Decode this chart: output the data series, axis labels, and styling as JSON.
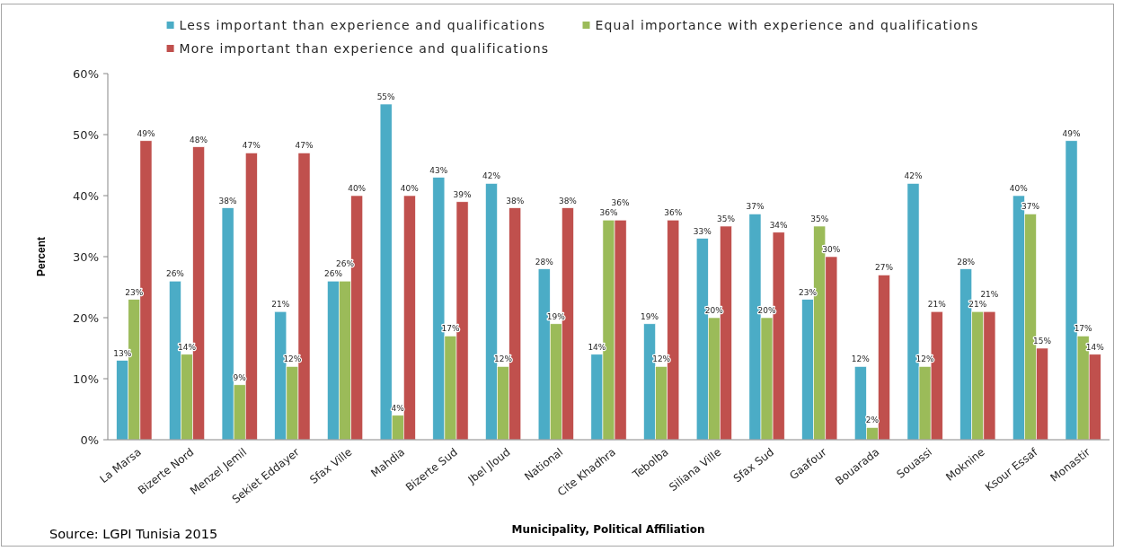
{
  "chart_data": {
    "type": "bar",
    "xlabel": "Municipality, Political Affiliation",
    "ylabel": "Percent",
    "annotations": [
      "Source: LGPI Tunisia 2015"
    ],
    "categories": [
      "La Marsa",
      "Bizerte Nord",
      "Menzel Jemil",
      "Sekiet Eddayer",
      "Sfax Ville",
      "Mahdia",
      "Bizerte Sud",
      "Jbel Jloud",
      "National",
      "Cite Khadhra",
      "Tebolba",
      "Siliana Ville",
      "Sfax Sud",
      "Gaafour",
      "Bouarada",
      "Souassi",
      "Moknine",
      "Ksour Essaf",
      "Monastir"
    ],
    "series": [
      {
        "name": "Less important than experience and qualifications",
        "color": "#4bacc6",
        "values": [
          13,
          26,
          38,
          21,
          26,
          55,
          43,
          42,
          28,
          14,
          19,
          33,
          37,
          23,
          12,
          42,
          28,
          40,
          49
        ],
        "value_labels": [
          "13%",
          "26%",
          "38%",
          "21%",
          "26%",
          "55%",
          "43%",
          "42%",
          "28%",
          "14%",
          "19%",
          "33%",
          "37%",
          "23%",
          "12%",
          "42%",
          "28%",
          "40%",
          "49%"
        ]
      },
      {
        "name": "Equal importance with experience and qualifications",
        "color": "#9bbb59",
        "values": [
          23,
          14,
          9,
          12,
          26,
          4,
          17,
          12,
          19,
          36,
          12,
          20,
          20,
          35,
          2,
          12,
          21,
          37,
          17
        ],
        "value_labels": [
          "23%",
          "14%",
          "9%",
          "12%",
          "26%",
          "4%",
          "17%",
          "12%",
          "19%",
          "36%",
          "12%",
          "20%",
          "20%",
          "35%",
          "2%",
          "12%",
          "21%",
          "37%",
          "17%"
        ]
      },
      {
        "name": "More important than experience and qualifications",
        "color": "#c0504d",
        "values": [
          49,
          48,
          47,
          47,
          40,
          40,
          39,
          38,
          38,
          36,
          36,
          35,
          34,
          30,
          27,
          21,
          21,
          15,
          14
        ],
        "value_labels": [
          "49%",
          "48%",
          "47%",
          "47%",
          "40%",
          "40%",
          "39%",
          "38%",
          "38%",
          "36%",
          "36%",
          "35%",
          "34%",
          "30%",
          "27%",
          "21%",
          "21%",
          "15%",
          "14%"
        ]
      }
    ],
    "ylim": [
      0,
      60
    ],
    "yticks": [
      {
        "value": 0,
        "label": "0%"
      },
      {
        "value": 10,
        "label": "10%"
      },
      {
        "value": 20,
        "label": "20%"
      },
      {
        "value": 30,
        "label": "30%"
      },
      {
        "value": 40,
        "label": "40%"
      },
      {
        "value": 50,
        "label": "50%"
      },
      {
        "value": 60,
        "label": "60%"
      }
    ],
    "legend": "top",
    "grid": false
  }
}
